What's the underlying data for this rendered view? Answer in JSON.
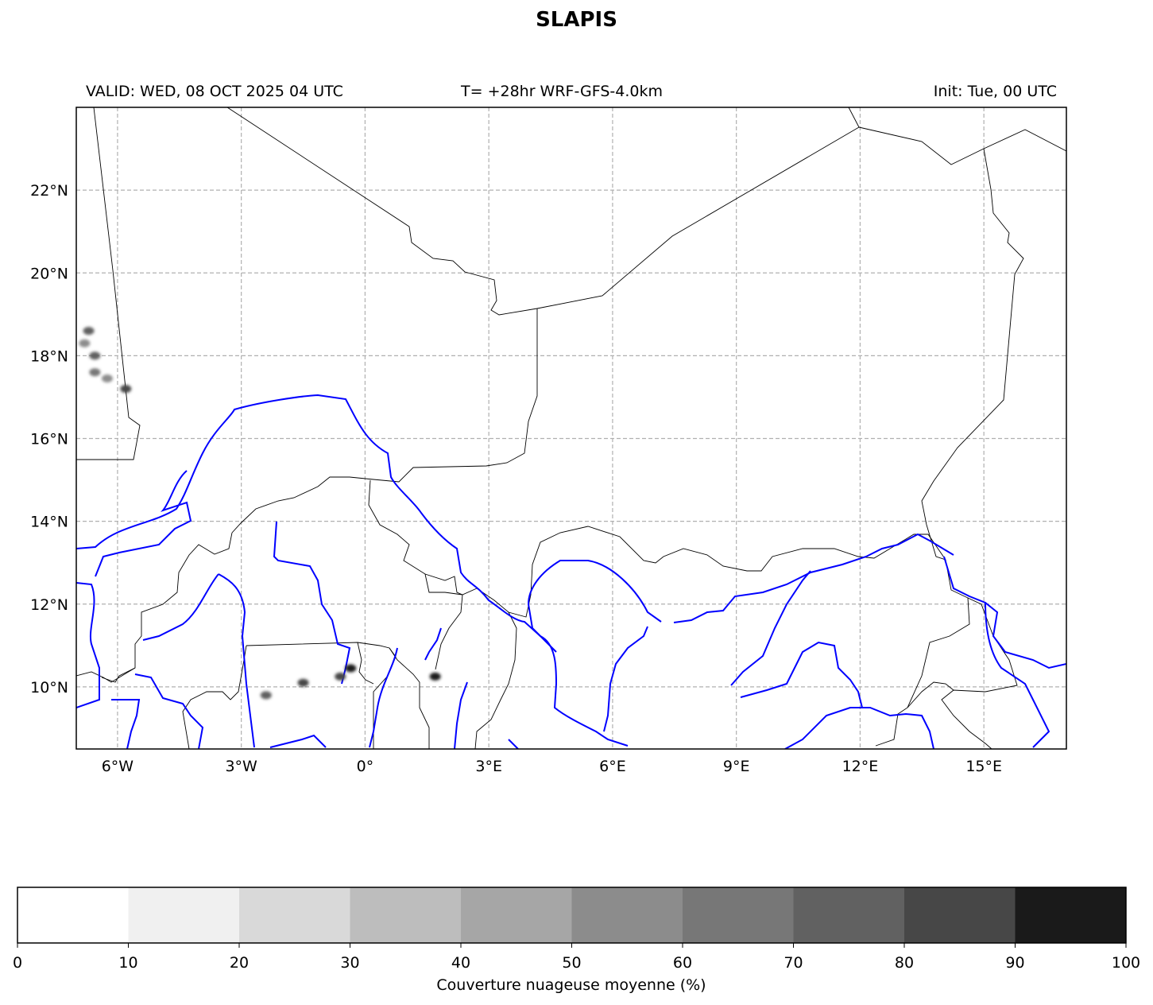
{
  "title": "SLAPIS",
  "header": {
    "valid": "VALID: WED, 08 OCT 2025 04 UTC",
    "run": "T= +28hr WRF-GFS-4.0km",
    "init": "Init: Tue, 00 UTC"
  },
  "map": {
    "lon_range": [
      -7,
      17
    ],
    "lat_range": [
      8.5,
      24
    ],
    "x_ticks": [
      {
        "value": -6,
        "label": "6°W"
      },
      {
        "value": -3,
        "label": "3°W"
      },
      {
        "value": 0,
        "label": "0°"
      },
      {
        "value": 3,
        "label": "3°E"
      },
      {
        "value": 6,
        "label": "6°E"
      },
      {
        "value": 9,
        "label": "9°E"
      },
      {
        "value": 12,
        "label": "12°E"
      },
      {
        "value": 15,
        "label": "15°E"
      }
    ],
    "y_ticks": [
      {
        "value": 22,
        "label": "22°N"
      },
      {
        "value": 20,
        "label": "20°N"
      },
      {
        "value": 18,
        "label": "18°N"
      },
      {
        "value": 16,
        "label": "16°N"
      },
      {
        "value": 14,
        "label": "14°N"
      },
      {
        "value": 12,
        "label": "12°N"
      },
      {
        "value": 10,
        "label": "10°N"
      }
    ],
    "gridlines": true,
    "colors": {
      "borders": "#000000",
      "rivers": "#0000ff",
      "grid": "#b0b0b0"
    },
    "cloud_cells": [
      {
        "lon": -6.7,
        "lat": 18.6,
        "value": 75
      },
      {
        "lon": -6.8,
        "lat": 18.3,
        "value": 55
      },
      {
        "lon": -6.55,
        "lat": 18.0,
        "value": 70
      },
      {
        "lon": -6.55,
        "lat": 17.6,
        "value": 60
      },
      {
        "lon": -6.25,
        "lat": 17.45,
        "value": 55
      },
      {
        "lon": -5.8,
        "lat": 17.2,
        "value": 80
      },
      {
        "lon": -2.4,
        "lat": 9.8,
        "value": 70
      },
      {
        "lon": -1.5,
        "lat": 10.1,
        "value": 80
      },
      {
        "lon": -0.6,
        "lat": 10.25,
        "value": 85
      },
      {
        "lon": -0.35,
        "lat": 10.45,
        "value": 90
      },
      {
        "lon": 1.7,
        "lat": 10.25,
        "value": 90
      }
    ]
  },
  "colorbar": {
    "label": "Couverture nuageuse moyenne (%)",
    "ticks": [
      "0",
      "10",
      "20",
      "30",
      "40",
      "50",
      "60",
      "70",
      "80",
      "90",
      "100"
    ],
    "colors": [
      "#ffffff",
      "#f0f0f0",
      "#d9d9d9",
      "#bdbdbd",
      "#a6a6a6",
      "#8c8c8c",
      "#777777",
      "#616161",
      "#474747",
      "#1a1a1a"
    ]
  }
}
